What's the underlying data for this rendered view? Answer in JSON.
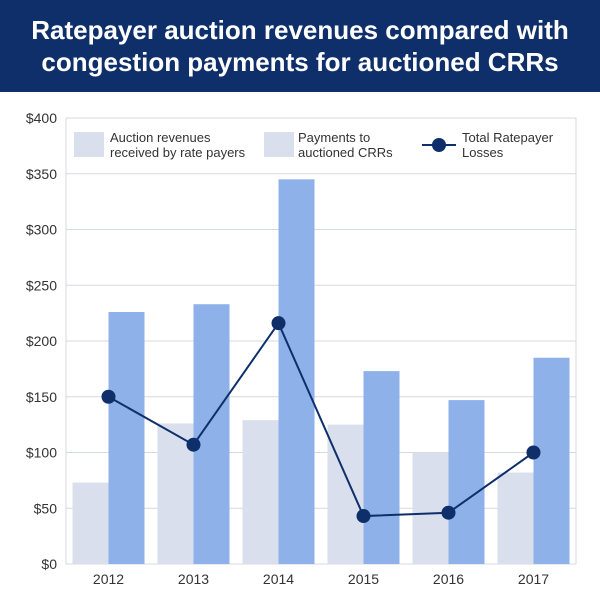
{
  "chart_data": {
    "type": "bar",
    "title": "Ratepayer auction revenues compared with congestion payments for auctioned CRRs",
    "categories": [
      "2012",
      "2013",
      "2014",
      "2015",
      "2016",
      "2017"
    ],
    "ylim": [
      0,
      400
    ],
    "yticks": [
      "$0",
      "$50",
      "$100",
      "$150",
      "$200",
      "$250",
      "$300",
      "$350",
      "$400"
    ],
    "ytick_values": [
      0,
      50,
      100,
      150,
      200,
      250,
      300,
      350,
      400
    ],
    "grid": true,
    "legend_position": "top",
    "series": [
      {
        "name": "Auction revenues received by rate payers",
        "kind": "bar",
        "color": "#d9dfec",
        "values": [
          73,
          126,
          129,
          125,
          100,
          82
        ]
      },
      {
        "name": "Payments to auctioned CRRs",
        "kind": "bar",
        "color": "#8fb1ea",
        "values": [
          226,
          233,
          345,
          173,
          147,
          185
        ]
      },
      {
        "name": "Total Ratepayer Losses",
        "kind": "line",
        "color": "#0f2f6b",
        "values": [
          150,
          107,
          216,
          43,
          46,
          100
        ]
      }
    ]
  },
  "legend": [
    {
      "line1": "Auction revenues",
      "line2": "received by rate payers"
    },
    {
      "line1": "Payments to",
      "line2": "auctioned CRRs"
    },
    {
      "line1": "Total Ratepayer",
      "line2": "Losses"
    }
  ]
}
